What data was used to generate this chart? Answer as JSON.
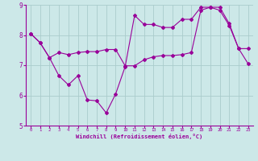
{
  "xlabel": "Windchill (Refroidissement éolien,°C)",
  "background_color": "#cce8e8",
  "line_color": "#990099",
  "grid_color": "#aacccc",
  "xlim": [
    -0.5,
    23.5
  ],
  "ylim": [
    5,
    9
  ],
  "xticks": [
    0,
    1,
    2,
    3,
    4,
    5,
    6,
    7,
    8,
    9,
    10,
    11,
    12,
    13,
    14,
    15,
    16,
    17,
    18,
    19,
    20,
    21,
    22,
    23
  ],
  "yticks": [
    5,
    6,
    7,
    8,
    9
  ],
  "line1_x": [
    0,
    1,
    2,
    3,
    4,
    5,
    6,
    7,
    8,
    9,
    10,
    11,
    12,
    13,
    14,
    15,
    16,
    17,
    18,
    19,
    20,
    21,
    22,
    23
  ],
  "line1_y": [
    8.05,
    7.75,
    7.25,
    6.65,
    6.35,
    6.65,
    5.85,
    5.82,
    5.42,
    6.05,
    6.95,
    8.65,
    8.35,
    8.35,
    8.25,
    8.25,
    8.52,
    8.52,
    8.92,
    8.92,
    8.82,
    8.32,
    7.55,
    7.05
  ],
  "line2_x": [
    0,
    1,
    2,
    3,
    4,
    5,
    6,
    7,
    8,
    9,
    10,
    11,
    12,
    13,
    14,
    15,
    16,
    17,
    18,
    19,
    20,
    21,
    22,
    23
  ],
  "line2_y": [
    8.05,
    7.75,
    7.25,
    7.42,
    7.35,
    7.42,
    7.45,
    7.45,
    7.52,
    7.52,
    6.98,
    6.98,
    7.18,
    7.28,
    7.32,
    7.32,
    7.35,
    7.42,
    8.82,
    8.92,
    8.92,
    8.38,
    7.55,
    7.55
  ]
}
